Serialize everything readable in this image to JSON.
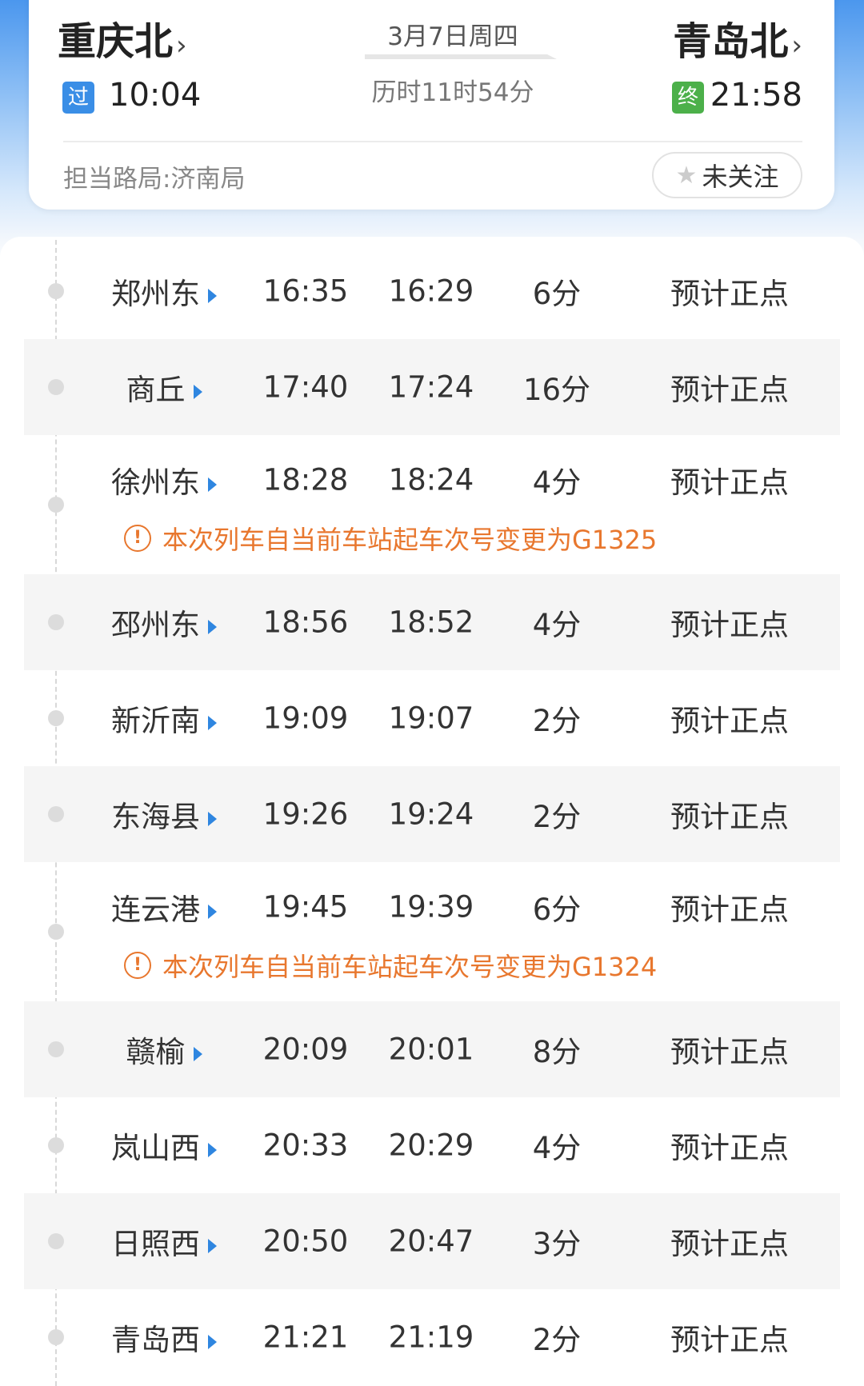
{
  "header": {
    "from_station": "重庆北",
    "to_station": "青岛北",
    "date": "3月7日周四",
    "duration": "历时11时54分",
    "from_badge": "过",
    "from_time": "10:04",
    "to_badge": "终",
    "to_time": "21:58",
    "bureau": "担当路局:济南局",
    "follow_label": "未关注",
    "chevron": "›",
    "colors": {
      "pass_badge": "#3a8ee6",
      "end_badge": "#4cb04a",
      "notice": "#e8772e",
      "arrow": "#2f86e0"
    }
  },
  "stops": [
    {
      "station": "郑州东",
      "arrive": "16:35",
      "depart": "16:29",
      "stop": "6分",
      "status": "预计正点"
    },
    {
      "station": "商丘",
      "arrive": "17:40",
      "depart": "17:24",
      "stop": "16分",
      "status": "预计正点"
    },
    {
      "station": "徐州东",
      "arrive": "18:28",
      "depart": "18:24",
      "stop": "4分",
      "status": "预计正点",
      "notice": "本次列车自当前车站起车次号变更为G1325"
    },
    {
      "station": "邳州东",
      "arrive": "18:56",
      "depart": "18:52",
      "stop": "4分",
      "status": "预计正点"
    },
    {
      "station": "新沂南",
      "arrive": "19:09",
      "depart": "19:07",
      "stop": "2分",
      "status": "预计正点"
    },
    {
      "station": "东海县",
      "arrive": "19:26",
      "depart": "19:24",
      "stop": "2分",
      "status": "预计正点"
    },
    {
      "station": "连云港",
      "arrive": "19:45",
      "depart": "19:39",
      "stop": "6分",
      "status": "预计正点",
      "notice": "本次列车自当前车站起车次号变更为G1324"
    },
    {
      "station": "赣榆",
      "arrive": "20:09",
      "depart": "20:01",
      "stop": "8分",
      "status": "预计正点"
    },
    {
      "station": "岚山西",
      "arrive": "20:33",
      "depart": "20:29",
      "stop": "4分",
      "status": "预计正点"
    },
    {
      "station": "日照西",
      "arrive": "20:50",
      "depart": "20:47",
      "stop": "3分",
      "status": "预计正点"
    },
    {
      "station": "青岛西",
      "arrive": "21:21",
      "depart": "21:19",
      "stop": "2分",
      "status": "预计正点"
    }
  ],
  "notice_icon": "!"
}
